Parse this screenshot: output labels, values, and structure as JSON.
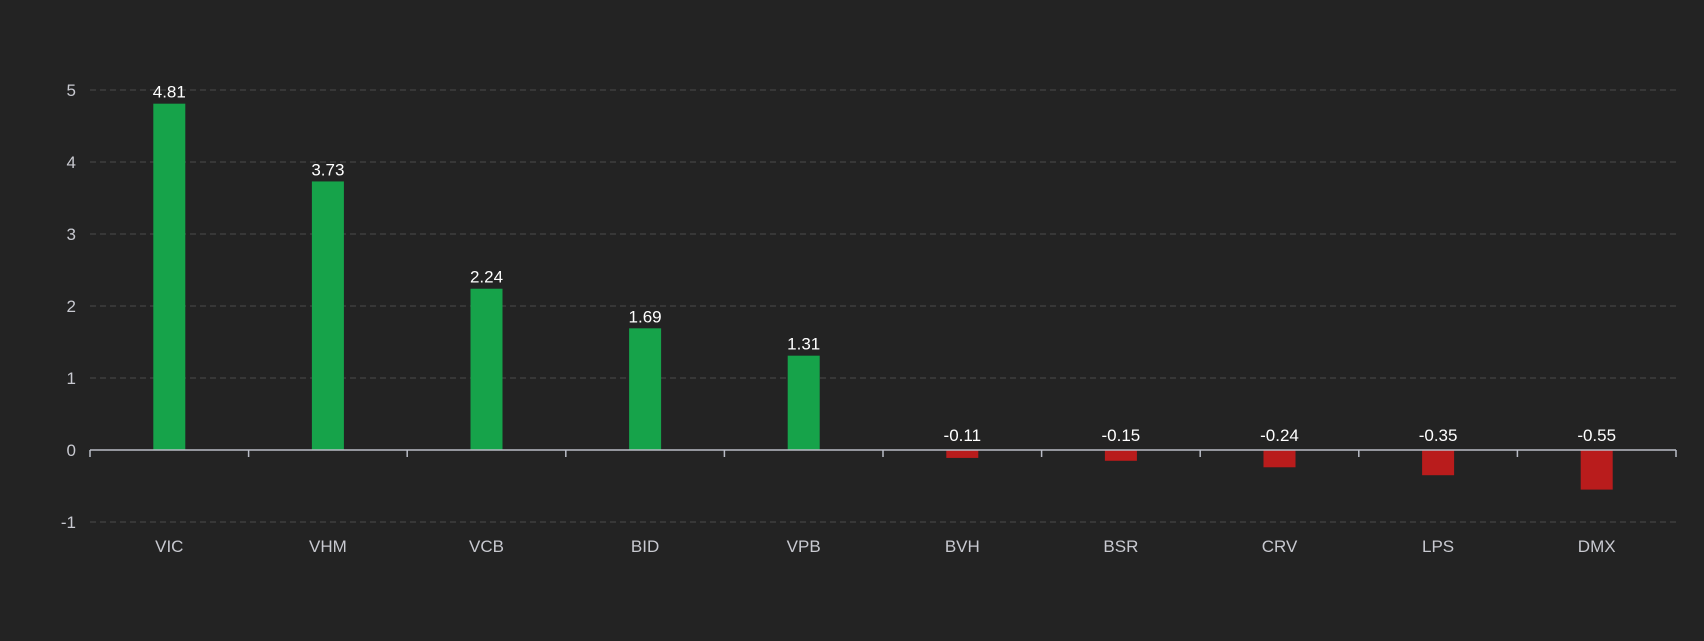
{
  "chart_data": {
    "type": "bar",
    "title": "",
    "xlabel": "",
    "ylabel": "",
    "categories": [
      "VIC",
      "VHM",
      "VCB",
      "BID",
      "VPB",
      "BVH",
      "BSR",
      "CRV",
      "LPS",
      "DMX"
    ],
    "values": [
      4.81,
      3.73,
      2.24,
      1.69,
      1.31,
      -0.11,
      -0.15,
      -0.24,
      -0.35,
      -0.55
    ],
    "value_labels": [
      "4.81",
      "3.73",
      "2.24",
      "1.69",
      "1.31",
      "-0.11",
      "-0.15",
      "-0.24",
      "-0.35",
      "-0.55"
    ],
    "ylim": [
      -1,
      5
    ],
    "yticks": [
      5,
      4,
      3,
      2,
      1,
      0,
      -1
    ],
    "ytick_labels": [
      "5",
      "4",
      "3",
      "2",
      "1",
      "0",
      "-1"
    ],
    "grid": true,
    "legend": "none",
    "colors": {
      "positive": "#16a34a",
      "negative": "#b91c1c",
      "background": "#232323",
      "grid": "#4b4b4b",
      "axis": "#b9bcc6",
      "tick_text": "#c8c9d0",
      "data_label_text": "#ffffff"
    }
  }
}
